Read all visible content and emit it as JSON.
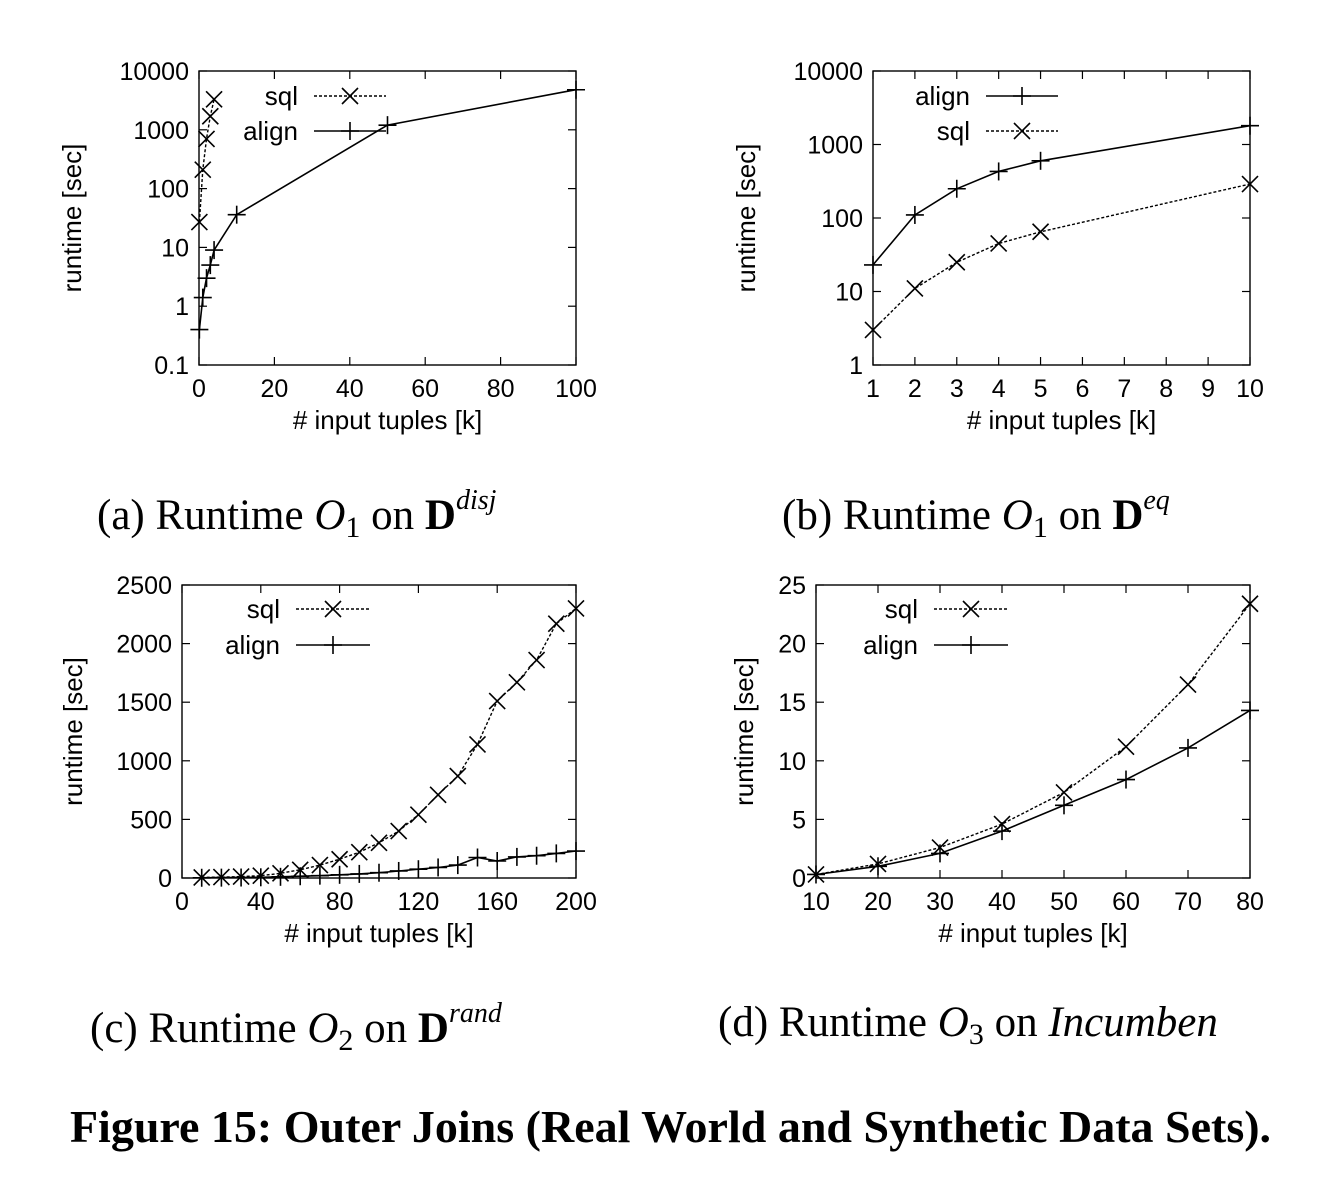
{
  "figure_caption": "Figure 15: Outer Joins (Real World and Synthetic Data Sets).",
  "subcaptions": [
    {
      "label": "(a)",
      "text": "Runtime",
      "op": "O",
      "op_sub": "1",
      "on": "on",
      "set": "D",
      "set_sup": "disj"
    },
    {
      "label": "(b)",
      "text": "Runtime",
      "op": "O",
      "op_sub": "1",
      "on": "on",
      "set": "D",
      "set_sup": "eq"
    },
    {
      "label": "(c)",
      "text": "Runtime",
      "op": "O",
      "op_sub": "2",
      "on": "on",
      "set": "D",
      "set_sup": "rand"
    },
    {
      "label": "(d)",
      "text": "Runtime",
      "op": "O",
      "op_sub": "3",
      "on": "on",
      "set_italic": "Incumben"
    }
  ],
  "chart_data": [
    {
      "type": "line",
      "xlabel": "# input tuples [k]",
      "ylabel": "runtime [sec]",
      "xscale": "linear",
      "yscale": "log",
      "xlim": [
        0,
        100
      ],
      "ylim": [
        0.1,
        10000
      ],
      "xticks": [
        0,
        20,
        40,
        60,
        80,
        100
      ],
      "xtick_labels": [
        "0",
        "20",
        "40",
        "60",
        "80",
        "100"
      ],
      "yticks": [
        0.1,
        1,
        10,
        100,
        1000,
        10000
      ],
      "ytick_labels": [
        "0.1",
        "1",
        "10",
        "100",
        "1000",
        "10000"
      ],
      "grid": false,
      "legend_position": "top",
      "series": [
        {
          "name": "sql",
          "style": "dashed",
          "marker": "x",
          "x": [
            0.1,
            1,
            2,
            3,
            4
          ],
          "y": [
            27,
            210,
            700,
            1700,
            3300
          ]
        },
        {
          "name": "align",
          "style": "solid",
          "marker": "+",
          "x": [
            0.1,
            1,
            2,
            3,
            4,
            10,
            50,
            100
          ],
          "y": [
            0.4,
            1.4,
            3,
            5,
            9,
            36,
            1200,
            4800
          ]
        }
      ]
    },
    {
      "type": "line",
      "xlabel": "# input tuples [k]",
      "ylabel": "runtime [sec]",
      "xscale": "linear",
      "yscale": "log",
      "xlim": [
        1,
        10
      ],
      "ylim": [
        1,
        10000
      ],
      "xticks": [
        1,
        2,
        3,
        4,
        5,
        6,
        7,
        8,
        9,
        10
      ],
      "xtick_labels": [
        "1",
        "2",
        "3",
        "4",
        "5",
        "6",
        "7",
        "8",
        "9",
        "10"
      ],
      "yticks": [
        1,
        10,
        100,
        1000,
        10000
      ],
      "ytick_labels": [
        "1",
        "10",
        "100",
        "1000",
        "10000"
      ],
      "grid": false,
      "legend_position": "top-left",
      "series": [
        {
          "name": "align",
          "style": "solid",
          "marker": "+",
          "x": [
            1,
            2,
            3,
            4,
            5,
            10
          ],
          "y": [
            23,
            110,
            250,
            430,
            600,
            1800
          ]
        },
        {
          "name": "sql",
          "style": "dashed",
          "marker": "x",
          "x": [
            1,
            2,
            3,
            4,
            5,
            10
          ],
          "y": [
            3,
            11,
            25,
            45,
            65,
            290
          ]
        }
      ]
    },
    {
      "type": "line",
      "xlabel": "# input tuples [k]",
      "ylabel": "runtime [sec]",
      "xscale": "linear",
      "yscale": "linear",
      "xlim": [
        0,
        200
      ],
      "ylim": [
        0,
        2500
      ],
      "xticks": [
        0,
        40,
        80,
        120,
        160,
        200
      ],
      "xtick_labels": [
        "0",
        "40",
        "80",
        "120",
        "160",
        "200"
      ],
      "yticks": [
        0,
        500,
        1000,
        1500,
        2000,
        2500
      ],
      "ytick_labels": [
        "0",
        "500",
        "1000",
        "1500",
        "2000",
        "2500"
      ],
      "grid": false,
      "legend_position": "top",
      "series": [
        {
          "name": "sql",
          "style": "dashed",
          "marker": "x",
          "x": [
            10,
            20,
            30,
            40,
            50,
            60,
            70,
            80,
            90,
            100,
            110,
            120,
            130,
            140,
            150,
            160,
            170,
            180,
            190,
            200
          ],
          "y": [
            5,
            8,
            12,
            20,
            40,
            70,
            110,
            160,
            220,
            300,
            400,
            540,
            710,
            870,
            1140,
            1510,
            1670,
            1860,
            2170,
            2300
          ]
        },
        {
          "name": "align",
          "style": "solid",
          "marker": "+",
          "x": [
            10,
            20,
            30,
            40,
            50,
            60,
            70,
            80,
            90,
            100,
            110,
            120,
            130,
            140,
            150,
            160,
            170,
            180,
            190,
            200
          ],
          "y": [
            2,
            3,
            4,
            6,
            10,
            15,
            20,
            27,
            35,
            45,
            60,
            75,
            90,
            110,
            175,
            145,
            180,
            190,
            210,
            230
          ]
        }
      ]
    },
    {
      "type": "line",
      "xlabel": "# input tuples [k]",
      "ylabel": "runtime [sec]",
      "xscale": "linear",
      "yscale": "linear",
      "xlim": [
        10,
        80
      ],
      "ylim": [
        0,
        25
      ],
      "xticks": [
        10,
        20,
        30,
        40,
        50,
        60,
        70,
        80
      ],
      "xtick_labels": [
        "10",
        "20",
        "30",
        "40",
        "50",
        "60",
        "70",
        "80"
      ],
      "yticks": [
        0,
        5,
        10,
        15,
        20,
        25
      ],
      "ytick_labels": [
        "0",
        "5",
        "10",
        "15",
        "20",
        "25"
      ],
      "grid": false,
      "legend_position": "top-left",
      "series": [
        {
          "name": "sql",
          "style": "dashed",
          "marker": "x",
          "x": [
            10,
            20,
            30,
            40,
            50,
            60,
            70,
            80
          ],
          "y": [
            0.3,
            1.2,
            2.6,
            4.6,
            7.3,
            11.2,
            16.5,
            23.4
          ]
        },
        {
          "name": "align",
          "style": "solid",
          "marker": "+",
          "x": [
            10,
            20,
            30,
            40,
            50,
            60,
            70,
            80
          ],
          "y": [
            0.3,
            1.0,
            2.1,
            4.0,
            6.2,
            8.4,
            11.1,
            14.3
          ]
        }
      ]
    }
  ]
}
